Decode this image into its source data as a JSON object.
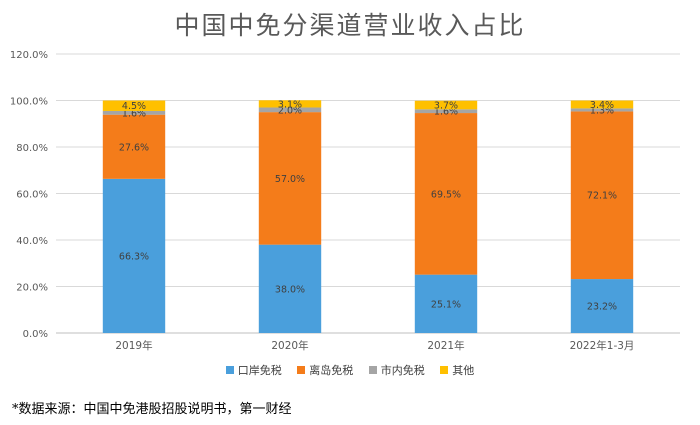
{
  "chart_data": {
    "type": "bar",
    "stacked": true,
    "title": "中国中免分渠道营业收入占比",
    "categories": [
      "2019年",
      "2020年",
      "2021年",
      "2022年1-3月"
    ],
    "series": [
      {
        "name": "口岸免税",
        "color": "#4a9fdc",
        "values": [
          66.3,
          38.0,
          25.1,
          23.2
        ],
        "labels": [
          "66.3%",
          "38.0%",
          "25.1%",
          "23.2%"
        ]
      },
      {
        "name": "离岛免税",
        "color": "#f47c1a",
        "values": [
          27.6,
          57.0,
          69.5,
          72.1
        ],
        "labels": [
          "27.6%",
          "57.0%",
          "69.5%",
          "72.1%"
        ]
      },
      {
        "name": "市内免税",
        "color": "#a5a5a5",
        "values": [
          1.6,
          2.0,
          1.6,
          1.3
        ],
        "labels": [
          "1.6%",
          "2.0%",
          "1.6%",
          "1.3%"
        ]
      },
      {
        "name": "其他",
        "color": "#ffc000",
        "values": [
          4.5,
          3.1,
          3.7,
          3.4
        ],
        "labels": [
          "4.5%",
          "3.1%",
          "3.7%",
          "3.4%"
        ]
      }
    ],
    "ylim": [
      0,
      120
    ],
    "yticks": [
      "0.0%",
      "20.0%",
      "40.0%",
      "60.0%",
      "80.0%",
      "100.0%",
      "120.0%"
    ],
    "grid": true,
    "legend": "bottom"
  },
  "source_note": "*数据来源：中国中免港股招股说明书，第一财经"
}
